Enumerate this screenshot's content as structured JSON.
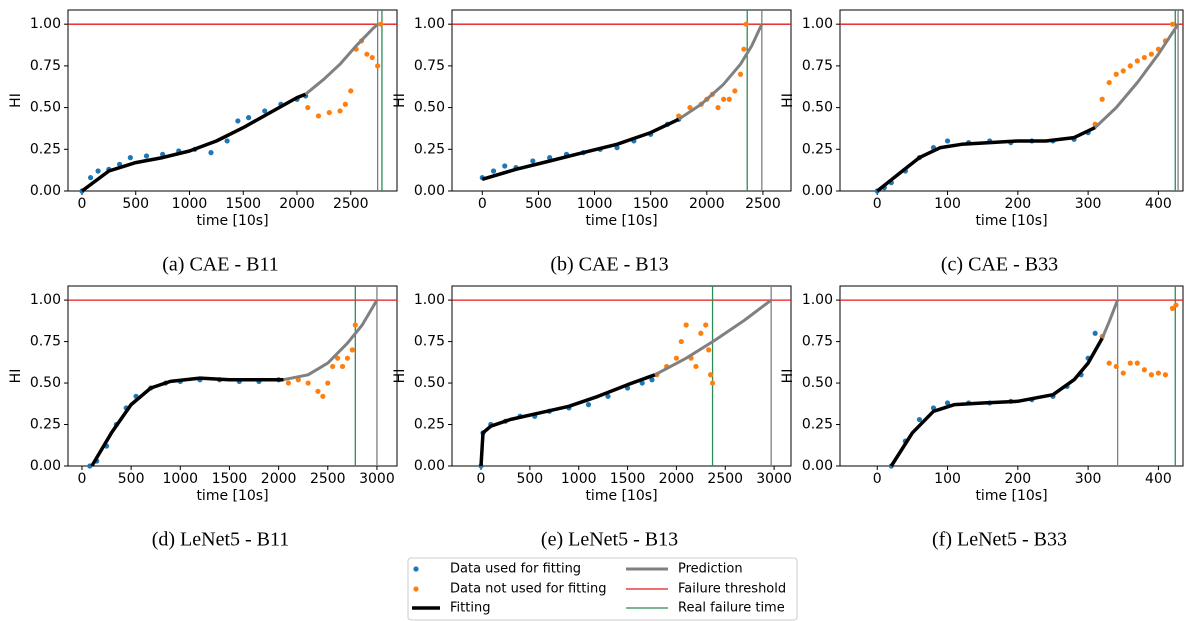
{
  "chart_data": [
    {
      "type": "scatter",
      "caption": "(a) CAE - B11",
      "xlabel": "time [10s]",
      "ylabel": "HI",
      "xlim": [
        -130,
        2930
      ],
      "ylim": [
        0,
        1.085
      ],
      "xticks": [
        0,
        500,
        1000,
        1500,
        2000,
        2500
      ],
      "yticks": [
        {
          "value": 0,
          "label": "0.00"
        },
        0.25,
        {
          "value": 0.5,
          "label": "0.50"
        },
        0.75,
        {
          "value": 1,
          "label": "1.00"
        }
      ],
      "series": [
        {
          "name": "Data used for fitting",
          "kind": "points",
          "color": "#1f77b4",
          "x": [
            0,
            80,
            150,
            250,
            350,
            450,
            600,
            750,
            900,
            1050,
            1200,
            1350,
            1450,
            1550,
            1700,
            1850,
            2000,
            2080
          ],
          "values": [
            0.0,
            0.08,
            0.12,
            0.13,
            0.16,
            0.2,
            0.21,
            0.22,
            0.24,
            0.25,
            0.23,
            0.3,
            0.42,
            0.44,
            0.48,
            0.52,
            0.55,
            0.57
          ]
        },
        {
          "name": "Data not used for fitting",
          "kind": "points",
          "color": "#ff7f0e",
          "x": [
            2100,
            2200,
            2300,
            2400,
            2450,
            2500,
            2550,
            2600,
            2650,
            2700,
            2750,
            2780
          ],
          "values": [
            0.5,
            0.45,
            0.47,
            0.48,
            0.52,
            0.6,
            0.85,
            0.9,
            0.82,
            0.8,
            0.75,
            1.0
          ]
        },
        {
          "name": "Fitting",
          "kind": "line",
          "color": "#000000",
          "width": 3.5,
          "x": [
            0,
            250,
            500,
            750,
            1000,
            1250,
            1500,
            1750,
            2000,
            2080
          ],
          "values": [
            0,
            0.12,
            0.17,
            0.2,
            0.24,
            0.3,
            0.38,
            0.47,
            0.56,
            0.58
          ]
        },
        {
          "name": "Prediction",
          "kind": "line",
          "color": "#808080",
          "width": 3,
          "x": [
            2080,
            2250,
            2400,
            2550,
            2700,
            2750
          ],
          "values": [
            0.58,
            0.67,
            0.76,
            0.87,
            0.97,
            1.0
          ]
        }
      ],
      "threshold": {
        "name": "Failure threshold",
        "color": "#e41a1c",
        "value": 1.0
      },
      "real_failure": {
        "name": "Real failure time",
        "color": "#2e8b57",
        "value": 2790
      },
      "predicted_failure": 2750
    },
    {
      "type": "scatter",
      "caption": "(b) CAE - B13",
      "xlabel": "time [10s]",
      "ylabel": "HI",
      "xlim": [
        -270,
        2750
      ],
      "ylim": [
        0,
        1.085
      ],
      "xticks": [
        0,
        500,
        1000,
        1500,
        2000,
        2500
      ],
      "yticks": [
        {
          "value": 0,
          "label": "0.00"
        },
        0.25,
        {
          "value": 0.5,
          "label": "0.50"
        },
        0.75,
        {
          "value": 1,
          "label": "1.00"
        }
      ],
      "series": [
        {
          "kind": "points",
          "color": "#1f77b4",
          "x": [
            0,
            100,
            200,
            300,
            450,
            600,
            750,
            900,
            1050,
            1200,
            1350,
            1500,
            1650,
            1750
          ],
          "values": [
            0.08,
            0.12,
            0.15,
            0.14,
            0.18,
            0.2,
            0.22,
            0.23,
            0.25,
            0.26,
            0.3,
            0.34,
            0.4,
            0.43
          ]
        },
        {
          "kind": "points",
          "color": "#ff7f0e",
          "x": [
            1750,
            1850,
            1950,
            2000,
            2050,
            2100,
            2150,
            2200,
            2250,
            2300,
            2330,
            2350
          ],
          "values": [
            0.45,
            0.5,
            0.52,
            0.55,
            0.58,
            0.5,
            0.55,
            0.55,
            0.6,
            0.7,
            0.85,
            1.0
          ]
        },
        {
          "kind": "line",
          "color": "#000000",
          "width": 3.5,
          "x": [
            0,
            300,
            600,
            900,
            1200,
            1500,
            1750
          ],
          "values": [
            0.07,
            0.13,
            0.18,
            0.23,
            0.28,
            0.35,
            0.43
          ]
        },
        {
          "kind": "line",
          "color": "#808080",
          "width": 3,
          "x": [
            1750,
            1950,
            2150,
            2300,
            2400,
            2490
          ],
          "values": [
            0.43,
            0.52,
            0.64,
            0.76,
            0.87,
            1.0
          ]
        }
      ],
      "threshold": {
        "color": "#e41a1c",
        "value": 1.0
      },
      "real_failure": {
        "color": "#2e8b57",
        "value": 2360
      },
      "predicted_failure": 2490
    },
    {
      "type": "scatter",
      "caption": "(c) CAE - B33",
      "xlabel": "time [10s]",
      "ylabel": "HI",
      "xlim": [
        -53,
        435
      ],
      "ylim": [
        0,
        1.085
      ],
      "xticks": [
        0,
        100,
        200,
        300,
        400
      ],
      "yticks": [
        {
          "value": 0,
          "label": "0.00"
        },
        0.25,
        {
          "value": 0.5,
          "label": "0.50"
        },
        0.75,
        {
          "value": 1,
          "label": "1.00"
        }
      ],
      "series": [
        {
          "kind": "points",
          "color": "#1f77b4",
          "x": [
            0,
            10,
            20,
            40,
            60,
            80,
            100,
            130,
            160,
            190,
            220,
            250,
            280,
            300
          ],
          "values": [
            0,
            0.02,
            0.05,
            0.12,
            0.2,
            0.26,
            0.3,
            0.29,
            0.3,
            0.29,
            0.3,
            0.3,
            0.31,
            0.35
          ]
        },
        {
          "kind": "points",
          "color": "#ff7f0e",
          "x": [
            310,
            320,
            330,
            340,
            350,
            360,
            370,
            380,
            390,
            400,
            410,
            420
          ],
          "values": [
            0.4,
            0.55,
            0.65,
            0.7,
            0.72,
            0.75,
            0.78,
            0.8,
            0.82,
            0.85,
            0.9,
            1.0
          ]
        },
        {
          "kind": "line",
          "color": "#000000",
          "width": 3.5,
          "x": [
            0,
            30,
            60,
            90,
            120,
            160,
            200,
            240,
            280,
            310
          ],
          "values": [
            0,
            0.1,
            0.2,
            0.26,
            0.28,
            0.29,
            0.3,
            0.3,
            0.32,
            0.38
          ]
        },
        {
          "kind": "line",
          "color": "#808080",
          "width": 3,
          "x": [
            310,
            340,
            370,
            400,
            428
          ],
          "values": [
            0.38,
            0.5,
            0.65,
            0.82,
            1.0
          ]
        }
      ],
      "threshold": {
        "color": "#e41a1c",
        "value": 1.0
      },
      "real_failure": {
        "color": "#2e8b57",
        "value": 424
      },
      "predicted_failure": 428
    },
    {
      "type": "scatter",
      "caption": "(d) LeNet5 - B11",
      "xlabel": "time [10s]",
      "ylabel": "HI",
      "xlim": [
        -142,
        3204
      ],
      "ylim": [
        0,
        1.085
      ],
      "xticks": [
        0,
        500,
        1000,
        1500,
        2000,
        2500,
        3000
      ],
      "yticks": [
        {
          "value": 0,
          "label": "0.00"
        },
        0.25,
        {
          "value": 0.5,
          "label": "0.50"
        },
        0.75,
        {
          "value": 1,
          "label": "1.00"
        }
      ],
      "series": [
        {
          "kind": "points",
          "color": "#1f77b4",
          "x": [
            80,
            150,
            250,
            350,
            450,
            550,
            700,
            850,
            1000,
            1200,
            1400,
            1600,
            1800,
            2000
          ],
          "values": [
            0,
            0.03,
            0.12,
            0.25,
            0.35,
            0.42,
            0.47,
            0.5,
            0.51,
            0.52,
            0.52,
            0.51,
            0.51,
            0.52
          ]
        },
        {
          "kind": "points",
          "color": "#ff7f0e",
          "x": [
            2100,
            2200,
            2300,
            2400,
            2450,
            2500,
            2550,
            2600,
            2650,
            2700,
            2750,
            2780
          ],
          "values": [
            0.5,
            0.52,
            0.5,
            0.45,
            0.42,
            0.5,
            0.6,
            0.65,
            0.6,
            0.65,
            0.7,
            0.85
          ]
        },
        {
          "kind": "line",
          "color": "#000000",
          "width": 3.5,
          "x": [
            100,
            300,
            500,
            700,
            900,
            1200,
            1500,
            1800,
            2050
          ],
          "values": [
            0,
            0.2,
            0.37,
            0.47,
            0.51,
            0.53,
            0.52,
            0.52,
            0.52
          ]
        },
        {
          "kind": "line",
          "color": "#808080",
          "width": 3,
          "x": [
            2050,
            2300,
            2500,
            2700,
            2850,
            3000
          ],
          "values": [
            0.52,
            0.55,
            0.62,
            0.74,
            0.85,
            1.0
          ]
        }
      ],
      "threshold": {
        "color": "#e41a1c",
        "value": 1.0
      },
      "real_failure": {
        "color": "#2e8b57",
        "value": 2780
      },
      "predicted_failure": 3000
    },
    {
      "type": "scatter",
      "caption": "(e) LeNet5 - B13",
      "xlabel": "time [10s]",
      "ylabel": "HI",
      "xlim": [
        -297,
        3173
      ],
      "ylim": [
        0,
        1.085
      ],
      "xticks": [
        0,
        500,
        1000,
        1500,
        2000,
        2500,
        3000
      ],
      "yticks": [
        {
          "value": 0,
          "label": "0.00"
        },
        0.25,
        {
          "value": 0.5,
          "label": "0.50"
        },
        0.75,
        {
          "value": 1,
          "label": "1.00"
        }
      ],
      "series": [
        {
          "kind": "points",
          "color": "#1f77b4",
          "x": [
            0,
            20,
            100,
            250,
            400,
            550,
            700,
            900,
            1100,
            1300,
            1500,
            1650,
            1750
          ],
          "values": [
            0,
            0.2,
            0.25,
            0.27,
            0.3,
            0.3,
            0.33,
            0.35,
            0.37,
            0.42,
            0.47,
            0.5,
            0.52
          ]
        },
        {
          "kind": "points",
          "color": "#ff7f0e",
          "x": [
            1800,
            1900,
            2000,
            2050,
            2100,
            2150,
            2200,
            2250,
            2300,
            2330,
            2350,
            2370
          ],
          "values": [
            0.55,
            0.6,
            0.65,
            0.75,
            0.85,
            0.65,
            0.6,
            0.8,
            0.85,
            0.7,
            0.55,
            0.5
          ]
        },
        {
          "kind": "line",
          "color": "#000000",
          "width": 3.5,
          "x": [
            0,
            20,
            100,
            300,
            600,
            900,
            1200,
            1500,
            1780
          ],
          "values": [
            0,
            0.2,
            0.24,
            0.28,
            0.32,
            0.36,
            0.42,
            0.49,
            0.55
          ]
        },
        {
          "kind": "line",
          "color": "#808080",
          "width": 3,
          "x": [
            1780,
            2100,
            2400,
            2700,
            2970
          ],
          "values": [
            0.55,
            0.65,
            0.76,
            0.88,
            1.0
          ]
        }
      ],
      "threshold": {
        "color": "#e41a1c",
        "value": 1.0
      },
      "real_failure": {
        "color": "#2e8b57",
        "value": 2370
      },
      "predicted_failure": 2970
    },
    {
      "type": "scatter",
      "caption": "(f) LeNet5 - B33",
      "xlabel": "time [10s]",
      "ylabel": "HI",
      "xlim": [
        -53,
        435
      ],
      "ylim": [
        0,
        1.085
      ],
      "xticks": [
        0,
        100,
        200,
        300,
        400
      ],
      "yticks": [
        {
          "value": 0,
          "label": "0.00"
        },
        0.25,
        {
          "value": 0.5,
          "label": "0.50"
        },
        0.75,
        {
          "value": 1,
          "label": "1.00"
        }
      ],
      "series": [
        {
          "kind": "points",
          "color": "#1f77b4",
          "x": [
            20,
            40,
            60,
            80,
            100,
            130,
            160,
            190,
            220,
            250,
            270,
            290,
            300,
            310
          ],
          "values": [
            0,
            0.15,
            0.28,
            0.35,
            0.38,
            0.38,
            0.38,
            0.39,
            0.4,
            0.42,
            0.48,
            0.55,
            0.65,
            0.8
          ]
        },
        {
          "kind": "points",
          "color": "#ff7f0e",
          "x": [
            320,
            330,
            340,
            350,
            360,
            370,
            380,
            390,
            400,
            410,
            420,
            425
          ],
          "values": [
            0.78,
            0.62,
            0.6,
            0.56,
            0.62,
            0.62,
            0.58,
            0.55,
            0.56,
            0.55,
            0.95,
            0.97
          ]
        },
        {
          "kind": "line",
          "color": "#000000",
          "width": 3.5,
          "x": [
            20,
            50,
            80,
            110,
            150,
            200,
            250,
            280,
            300,
            320
          ],
          "values": [
            0,
            0.2,
            0.33,
            0.37,
            0.38,
            0.39,
            0.43,
            0.52,
            0.62,
            0.77
          ]
        },
        {
          "kind": "line",
          "color": "#808080",
          "width": 3,
          "x": [
            320,
            330,
            342
          ],
          "values": [
            0.77,
            0.87,
            1.0
          ]
        }
      ],
      "threshold": {
        "color": "#e41a1c",
        "value": 1.0
      },
      "real_failure": {
        "color": "#2e8b57",
        "value": 424
      },
      "predicted_failure": 342
    }
  ]
}
